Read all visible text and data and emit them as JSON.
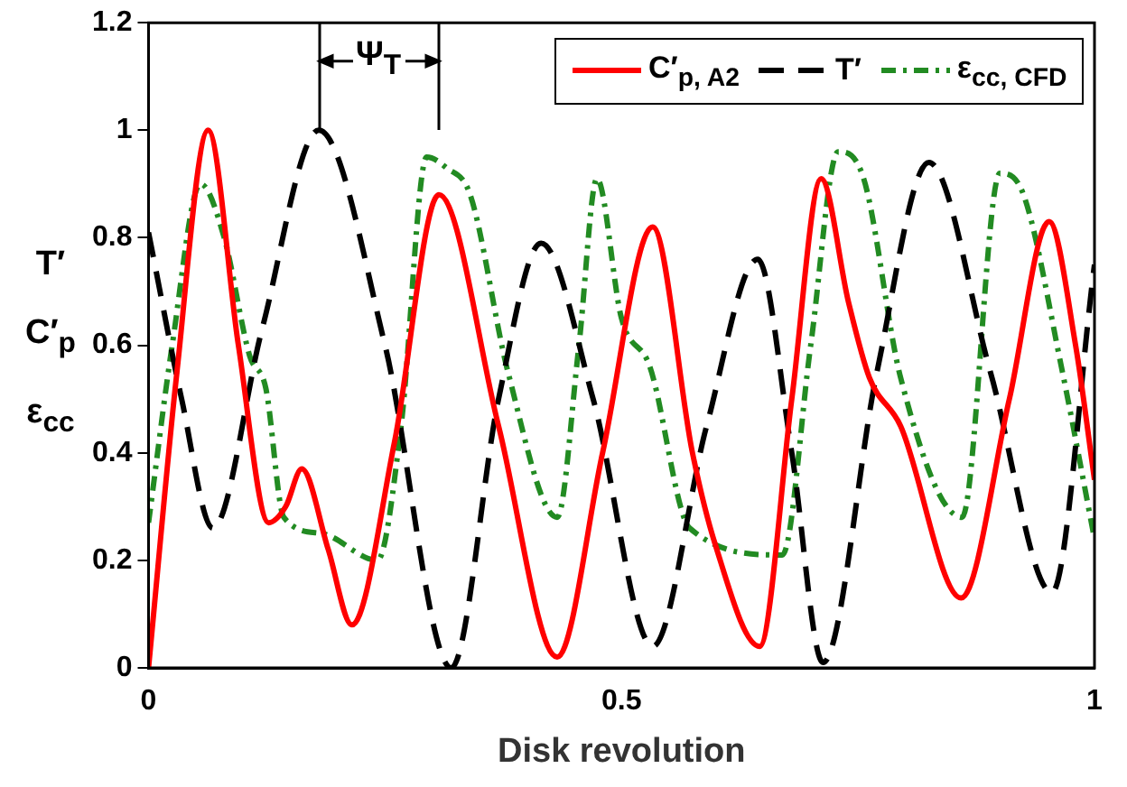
{
  "chart_data": {
    "type": "line",
    "xlabel": "Disk revolution",
    "ylabel": "T′ C′$_{p}$ ε$_{cc}$",
    "xlim": [
      0,
      1
    ],
    "xticks": [
      0,
      0.5,
      1
    ],
    "ylim": [
      0,
      1.2
    ],
    "yticks": [
      0,
      0.2,
      0.4,
      0.6,
      0.8,
      1,
      1.2
    ],
    "grid": false,
    "legend": "top right",
    "marker": "none",
    "annotations": [
      {
        "text": "Ψ$_{T}$",
        "x": 0.243,
        "y": 1.13
      }
    ],
    "series": [
      {
        "name": "C′$_{p, A2}$",
        "color": "#ff0000",
        "line_style": "solid",
        "x": [
          0,
          0.03,
          0.063,
          0.095,
          0.127,
          0.145,
          0.162,
          0.19,
          0.215,
          0.26,
          0.307,
          0.37,
          0.432,
          0.48,
          0.533,
          0.575,
          0.599,
          0.646,
          0.68,
          0.711,
          0.74,
          0.762,
          0.795,
          0.859,
          0.91,
          0.952,
          0.98,
          1
        ],
        "values": [
          0,
          0.55,
          1,
          0.6,
          0.27,
          0.3,
          0.37,
          0.22,
          0.08,
          0.42,
          0.88,
          0.45,
          0.02,
          0.4,
          0.82,
          0.4,
          0.23,
          0.04,
          0.5,
          0.91,
          0.68,
          0.54,
          0.45,
          0.13,
          0.5,
          0.83,
          0.6,
          0.35
        ]
      },
      {
        "name": "T′",
        "color": "#000000",
        "line_style": "dashed",
        "x": [
          0,
          0.035,
          0.068,
          0.12,
          0.18,
          0.25,
          0.32,
          0.37,
          0.415,
          0.47,
          0.533,
          0.59,
          0.644,
          0.68,
          0.713,
          0.77,
          0.825,
          0.89,
          0.955,
          1
        ],
        "values": [
          0.81,
          0.5,
          0.26,
          0.63,
          1,
          0.6,
          0,
          0.5,
          0.79,
          0.5,
          0.04,
          0.45,
          0.76,
          0.4,
          0.01,
          0.55,
          0.94,
          0.55,
          0.14,
          0.75
        ]
      },
      {
        "name": "ε$_{cc, CFD}$",
        "color": "#228b22",
        "line_style": "dash-dot",
        "x": [
          0,
          0.025,
          0.055,
          0.08,
          0.107,
          0.124,
          0.143,
          0.183,
          0.242,
          0.267,
          0.294,
          0.315,
          0.34,
          0.38,
          0.432,
          0.455,
          0.474,
          0.5,
          0.53,
          0.572,
          0.67,
          0.7,
          0.729,
          0.756,
          0.795,
          0.86,
          0.9,
          0.925,
          0.965,
          1
        ],
        "values": [
          0.27,
          0.6,
          0.9,
          0.8,
          0.58,
          0.52,
          0.28,
          0.25,
          0.2,
          0.45,
          0.95,
          0.93,
          0.88,
          0.55,
          0.28,
          0.6,
          0.91,
          0.65,
          0.56,
          0.26,
          0.21,
          0.6,
          0.96,
          0.91,
          0.54,
          0.28,
          0.92,
          0.88,
          0.56,
          0.24
        ]
      }
    ]
  }
}
